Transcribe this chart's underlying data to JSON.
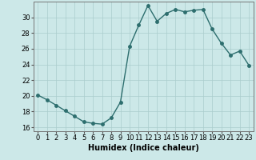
{
  "x": [
    0,
    1,
    2,
    3,
    4,
    5,
    6,
    7,
    8,
    9,
    10,
    11,
    12,
    13,
    14,
    15,
    16,
    17,
    18,
    19,
    20,
    21,
    22,
    23
  ],
  "y": [
    20.1,
    19.5,
    18.8,
    18.1,
    17.4,
    16.7,
    16.5,
    16.4,
    17.2,
    19.2,
    26.3,
    29.0,
    31.5,
    29.5,
    30.5,
    31.0,
    30.7,
    30.9,
    31.0,
    28.5,
    26.7,
    25.2,
    25.7,
    23.9
  ],
  "line_color": "#2d6e6e",
  "marker": "o",
  "markersize": 2.5,
  "linewidth": 1.0,
  "bg_color": "#cce8e8",
  "grid_color": "#aacccc",
  "xlabel": "Humidex (Indice chaleur)",
  "xlabel_fontsize": 7,
  "tick_fontsize": 6,
  "yticks": [
    16,
    18,
    20,
    22,
    24,
    26,
    28,
    30
  ],
  "xticks": [
    0,
    1,
    2,
    3,
    4,
    5,
    6,
    7,
    8,
    9,
    10,
    11,
    12,
    13,
    14,
    15,
    16,
    17,
    18,
    19,
    20,
    21,
    22,
    23
  ],
  "xlim": [
    -0.5,
    23.5
  ],
  "ylim": [
    15.5,
    32.0
  ]
}
